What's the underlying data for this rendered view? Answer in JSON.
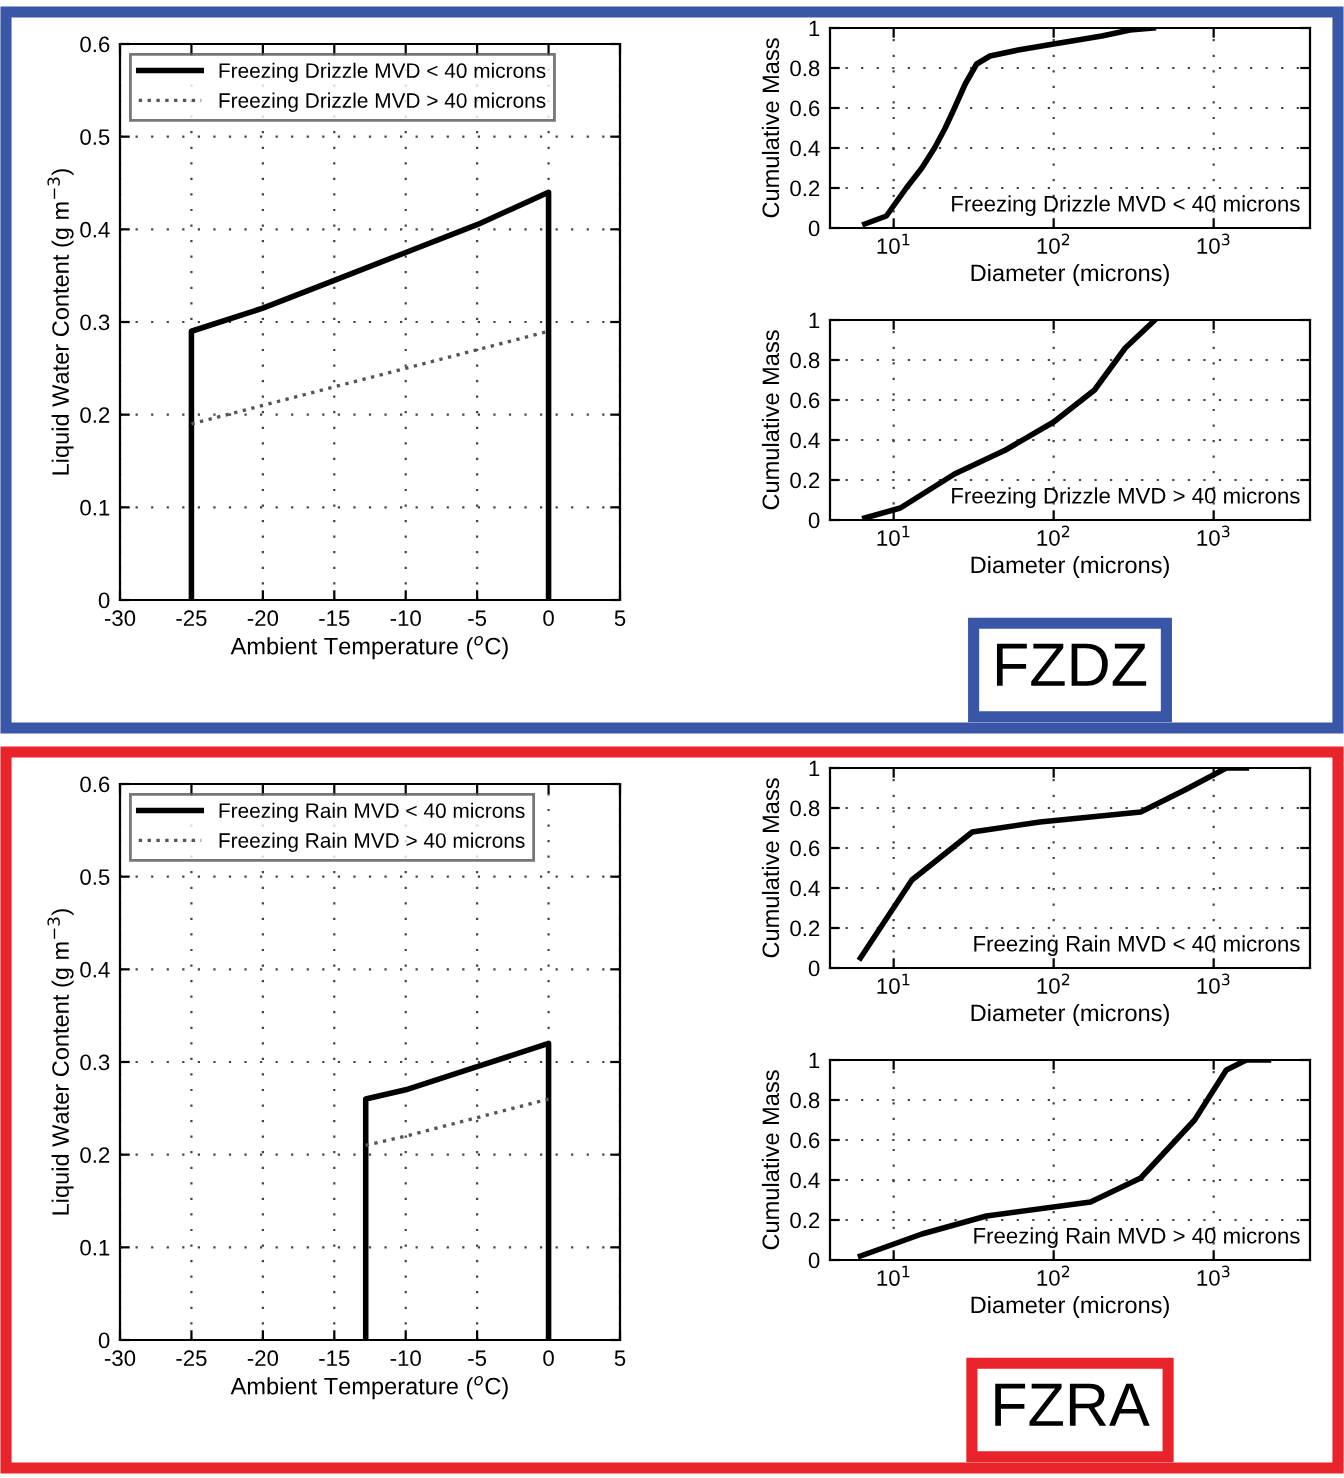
{
  "chart_data": [
    {
      "type": "line",
      "xlabel": "Ambient Temperature ($^{o}$C)",
      "ylabel": "Liquid Water Content (g m$^{−3}$)",
      "xlim": [
        -30,
        5
      ],
      "ylim": [
        0,
        0.6
      ],
      "xticks": [
        -30,
        -25,
        -20,
        -15,
        -10,
        -5,
        0,
        5
      ],
      "yticks": [
        0,
        0.1,
        0.2,
        0.3,
        0.4,
        0.5,
        0.6
      ],
      "grid": true,
      "legend": "top left",
      "annotations": [
        "FZDZ"
      ],
      "series": [
        {
          "name": "Freezing Drizzle MVD < 40 microns",
          "color": "#000000",
          "line_style": "solid",
          "x": [
            -25,
            -25,
            -20,
            -15,
            -10,
            -5,
            0,
            0
          ],
          "values": [
            0,
            0.29,
            0.315,
            0.345,
            0.375,
            0.405,
            0.44,
            0
          ]
        },
        {
          "name": "Freezing Drizzle MVD > 40 microns",
          "color": "#555555",
          "line_style": "dotted",
          "x": [
            -25,
            -20,
            -15,
            -10,
            -5,
            0
          ],
          "values": [
            0.19,
            0.21,
            0.23,
            0.25,
            0.27,
            0.29
          ]
        }
      ]
    },
    {
      "type": "line",
      "xlabel": "Diameter (microns)",
      "ylabel": "Cumulative Mass",
      "log": "x",
      "xlim": [
        4,
        4000
      ],
      "ylim": [
        0,
        1
      ],
      "xticks": [
        {
          "value": 10,
          "label": "10$^{1}$"
        },
        {
          "value": 100,
          "label": "10$^{2}$"
        },
        {
          "value": 1000,
          "label": "10$^{3}$"
        }
      ],
      "yticks": [
        0,
        0.2,
        0.4,
        0.6,
        0.8,
        1
      ],
      "grid": true,
      "series": [
        {
          "name": "Freezing Drizzle MVD < 40 microns",
          "color": "#000000",
          "x": [
            6.6,
            9,
            12,
            15,
            18,
            21,
            24,
            28,
            33,
            40,
            60,
            100,
            200,
            300,
            420
          ],
          "values": [
            0.02,
            0.06,
            0.2,
            0.3,
            0.4,
            0.5,
            0.6,
            0.72,
            0.82,
            0.86,
            0.89,
            0.92,
            0.96,
            0.99,
            1.0
          ]
        }
      ]
    },
    {
      "type": "line",
      "xlabel": "Diameter (microns)",
      "ylabel": "Cumulative Mass",
      "log": "x",
      "xlim": [
        4,
        4000
      ],
      "ylim": [
        0,
        1
      ],
      "xticks": [
        {
          "value": 10,
          "label": "10$^{1}$"
        },
        {
          "value": 100,
          "label": "10$^{2}$"
        },
        {
          "value": 1000,
          "label": "10$^{3}$"
        }
      ],
      "yticks": [
        0,
        0.2,
        0.4,
        0.6,
        0.8,
        1
      ],
      "grid": true,
      "series": [
        {
          "name": "Freezing Drizzle MVD > 40 microns",
          "color": "#000000",
          "x": [
            6.6,
            11,
            24,
            50,
            100,
            180,
            280,
            430
          ],
          "values": [
            0.01,
            0.06,
            0.23,
            0.35,
            0.49,
            0.65,
            0.86,
            1.0
          ]
        }
      ]
    },
    {
      "type": "line",
      "xlabel": "Ambient Temperature ($^{o}$C)",
      "ylabel": "Liquid Water Content (g m$^{−3}$)",
      "xlim": [
        -30,
        5
      ],
      "ylim": [
        0,
        0.6
      ],
      "xticks": [
        -30,
        -25,
        -20,
        -15,
        -10,
        -5,
        0,
        5
      ],
      "yticks": [
        0,
        0.1,
        0.2,
        0.3,
        0.4,
        0.5,
        0.6
      ],
      "grid": true,
      "legend": "top left",
      "annotations": [
        "FZRA"
      ],
      "series": [
        {
          "name": "Freezing Rain MVD < 40 microns",
          "color": "#000000",
          "line_style": "solid",
          "x": [
            -12.8,
            -12.8,
            -10,
            -5,
            0,
            0
          ],
          "values": [
            0,
            0.26,
            0.27,
            0.295,
            0.32,
            0
          ]
        },
        {
          "name": "Freezing Rain MVD > 40 microns",
          "color": "#555555",
          "line_style": "dotted",
          "x": [
            -12.8,
            -10,
            -5,
            0
          ],
          "values": [
            0.21,
            0.22,
            0.24,
            0.26
          ]
        }
      ]
    },
    {
      "type": "line",
      "xlabel": "Diameter (microns)",
      "ylabel": "Cumulative Mass",
      "log": "x",
      "xlim": [
        4,
        4000
      ],
      "ylim": [
        0,
        1
      ],
      "xticks": [
        {
          "value": 10,
          "label": "10$^{1}$"
        },
        {
          "value": 100,
          "label": "10$^{2}$"
        },
        {
          "value": 1000,
          "label": "10$^{3}$"
        }
      ],
      "yticks": [
        0,
        0.2,
        0.4,
        0.6,
        0.8,
        1
      ],
      "grid": true,
      "series": [
        {
          "name": "Freezing Rain MVD < 40 microns",
          "color": "#000000",
          "x": [
            6.2,
            13,
            31,
            82,
            350,
            660,
            1200,
            1600
          ],
          "values": [
            0.05,
            0.44,
            0.68,
            0.73,
            0.78,
            0.89,
            1.0,
            1.0
          ]
        }
      ]
    },
    {
      "type": "line",
      "xlabel": "Diameter (microns)",
      "ylabel": "Cumulative Mass",
      "log": "x",
      "xlim": [
        4,
        4000
      ],
      "ylim": [
        0,
        1
      ],
      "xticks": [
        {
          "value": 10,
          "label": "10$^{1}$"
        },
        {
          "value": 100,
          "label": "10$^{2}$"
        },
        {
          "value": 1000,
          "label": "10$^{3}$"
        }
      ],
      "yticks": [
        0,
        0.2,
        0.4,
        0.6,
        0.8,
        1
      ],
      "grid": true,
      "series": [
        {
          "name": "Freezing Rain MVD > 40 microns",
          "color": "#000000",
          "x": [
            6.2,
            15,
            38,
            170,
            350,
            760,
            1200,
            1600,
            2200
          ],
          "values": [
            0.02,
            0.13,
            0.22,
            0.29,
            0.41,
            0.7,
            0.95,
            1.0,
            1.0
          ]
        }
      ]
    }
  ]
}
